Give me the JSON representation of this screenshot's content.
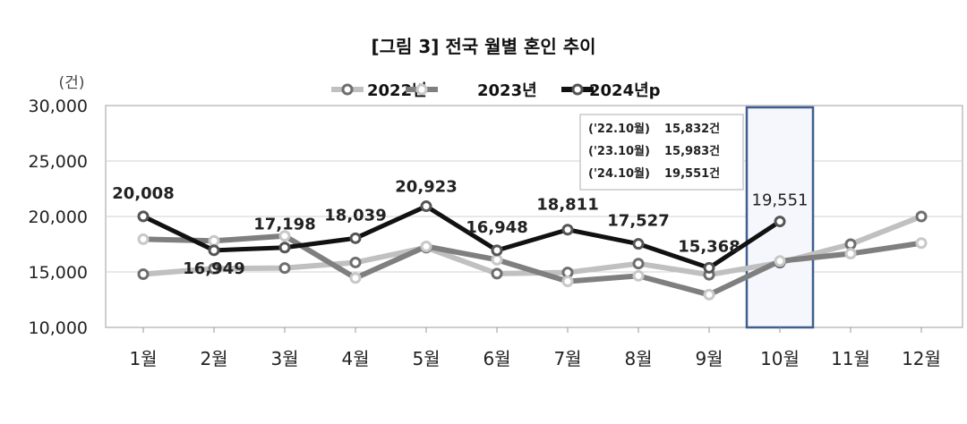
{
  "chart_data": {
    "type": "line",
    "title": "[그림 3] 전국 월별 혼인 추이",
    "ylabel": "(건)",
    "xlabel": "",
    "ylim": [
      10000,
      30000
    ],
    "yticks": [
      10000,
      15000,
      20000,
      25000,
      30000
    ],
    "ytick_labels": [
      "10,000",
      "15,000",
      "20,000",
      "25,000",
      "30,000"
    ],
    "grid": true,
    "legend": "top-center",
    "categories": [
      "1월",
      "2월",
      "3월",
      "4월",
      "5월",
      "6월",
      "7월",
      "8월",
      "9월",
      "10월",
      "11월",
      "12월"
    ],
    "series": [
      {
        "name": "2022년",
        "line_color": "#c0c0c0",
        "marker_color": "#6e6e6e",
        "values": [
          14800,
          15300,
          15350,
          15850,
          17200,
          14850,
          14950,
          15750,
          14750,
          15832,
          17500,
          20000
        ]
      },
      {
        "name": "2023년",
        "line_color": "#7f7f7f",
        "marker_color": "#c8c8c8",
        "values": [
          17950,
          17800,
          18250,
          14450,
          17300,
          16100,
          14150,
          14650,
          12950,
          15983,
          16650,
          17600
        ]
      },
      {
        "name": "2024년p",
        "line_color": "#111111",
        "marker_color": "#555555",
        "values": [
          20008,
          16949,
          17198,
          18039,
          20923,
          16948,
          18811,
          17527,
          15368,
          19551,
          null,
          null
        ],
        "data_labels": [
          "20,008",
          "16,949",
          "17,198",
          "18,039",
          "20,923",
          "16,948",
          "18,811",
          "17,527",
          "15,368",
          "19,551"
        ]
      }
    ],
    "highlight_category": "10월",
    "highlight_color": "#3f5f8f",
    "annotation": [
      {
        "label": "('22.10월)",
        "value": "15,832건"
      },
      {
        "label": "('23.10월)",
        "value": "15,983건"
      },
      {
        "label": "('24.10월)",
        "value": "19,551건"
      }
    ]
  }
}
